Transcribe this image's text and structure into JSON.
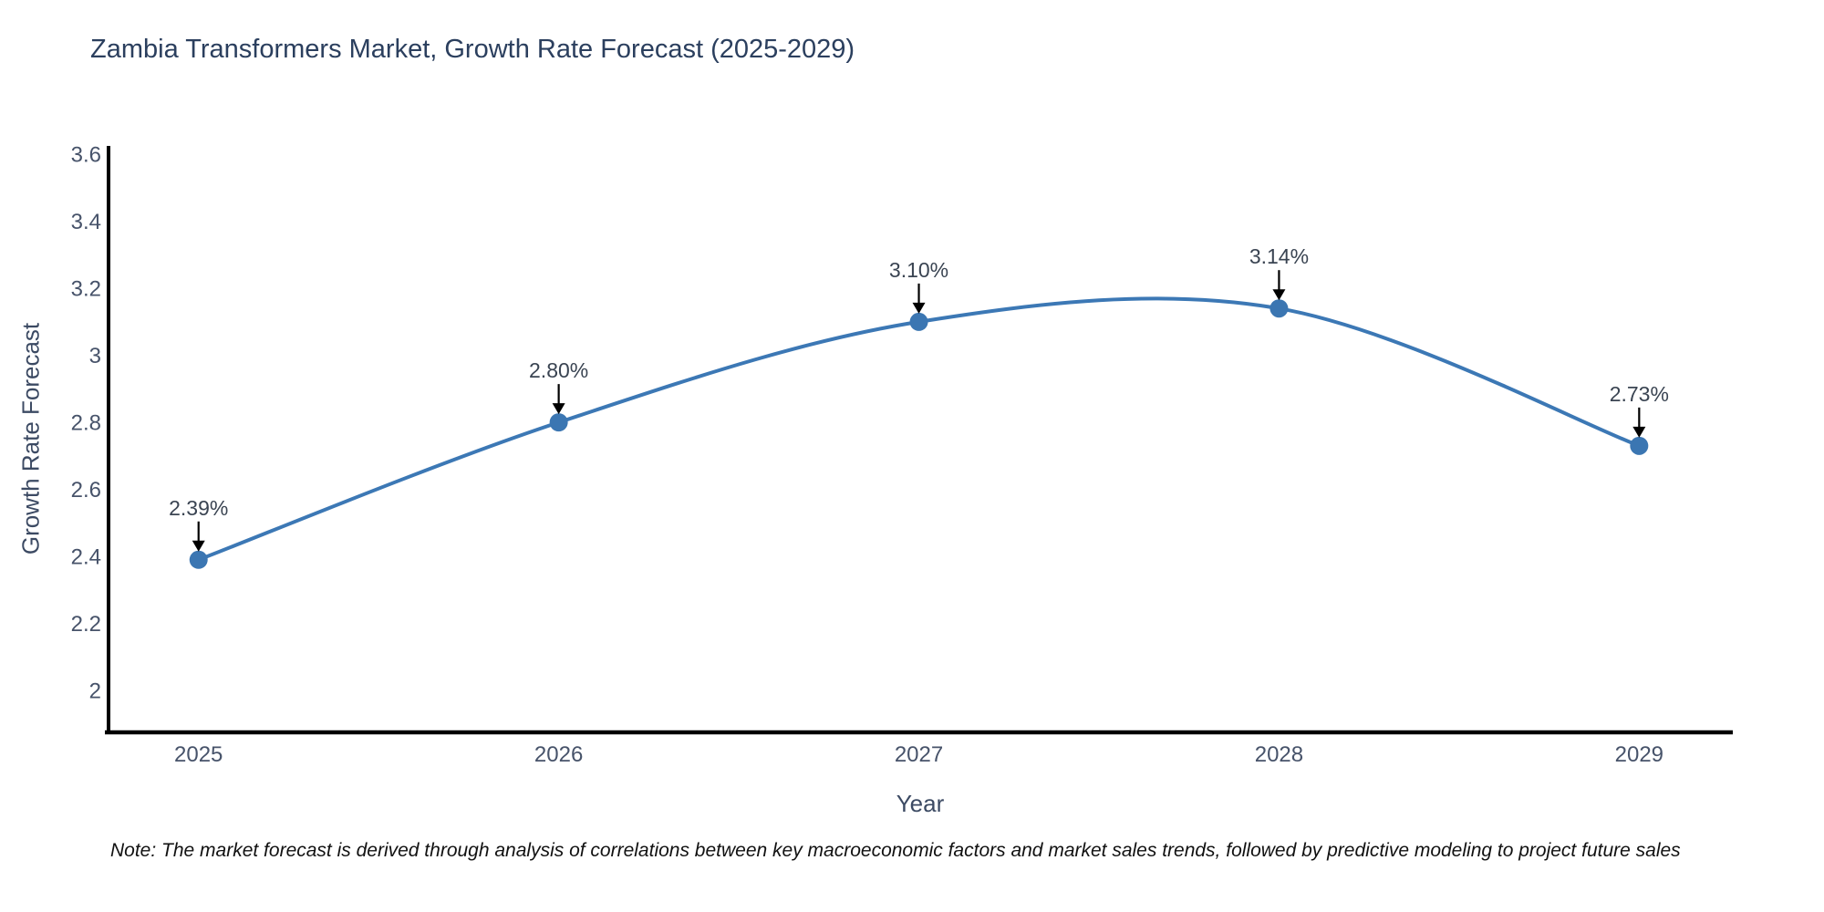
{
  "note": {
    "text": "Note: The market forecast is derived through analysis of correlations between key macroeconomic factors and market sales trends, followed by predictive modeling to project future sales"
  },
  "chart_data": {
    "type": "line",
    "title": "Zambia Transformers Market, Growth Rate Forecast (2025-2029)",
    "xlabel": "Year",
    "ylabel": "Growth Rate Forecast",
    "x": [
      2025,
      2026,
      2027,
      2028,
      2029
    ],
    "values": [
      2.39,
      2.8,
      3.1,
      3.14,
      2.73
    ],
    "point_labels": [
      "2.39%",
      "2.80%",
      "3.10%",
      "3.14%",
      "2.73%"
    ],
    "x_tick_labels": [
      "2025",
      "2026",
      "2027",
      "2028",
      "2029"
    ],
    "y_tick_values": [
      2,
      2.2,
      2.4,
      2.6,
      2.8,
      3,
      3.2,
      3.4,
      3.6
    ],
    "y_tick_labels": [
      "2",
      "2.2",
      "2.4",
      "2.6",
      "2.8",
      "3",
      "3.2",
      "3.4",
      "3.6"
    ],
    "xlim": [
      2024.75,
      2029.26
    ],
    "ylim": [
      1.875,
      3.625
    ],
    "grid": false,
    "legend": "none",
    "line_shape": "spline",
    "line_color": "#3c78b5",
    "marker_color": "#3b76b2",
    "axis_color": "#000000",
    "tick_color": "#47536a",
    "annotation_color": "#3a4452"
  }
}
